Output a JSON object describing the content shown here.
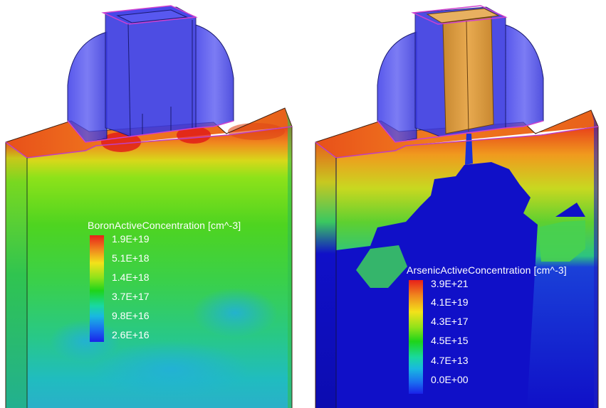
{
  "left_panel": {
    "legend_title": "BoronActiveConcentration [cm^-3]",
    "legend_ticks": [
      "1.9E+19",
      "5.1E+18",
      "1.4E+18",
      "3.7E+17",
      "9.8E+16",
      "2.6E+16"
    ]
  },
  "right_panel": {
    "legend_title": "ArsenicActiveConcentration [cm^-3]",
    "legend_ticks": [
      "3.9E+21",
      "4.1E+19",
      "4.3E+17",
      "4.5E+15",
      "4.7E+13",
      "0.0E+00"
    ]
  },
  "colors": {
    "gate_blue": "#3a3ae0",
    "gate_edge": "#1a1a60",
    "gate_outline": "#d040d0",
    "poly_orange": "#e0a040",
    "substrate_blue": "#1010c8",
    "hot_red": "#e8301a",
    "field_green": "#40d040"
  }
}
